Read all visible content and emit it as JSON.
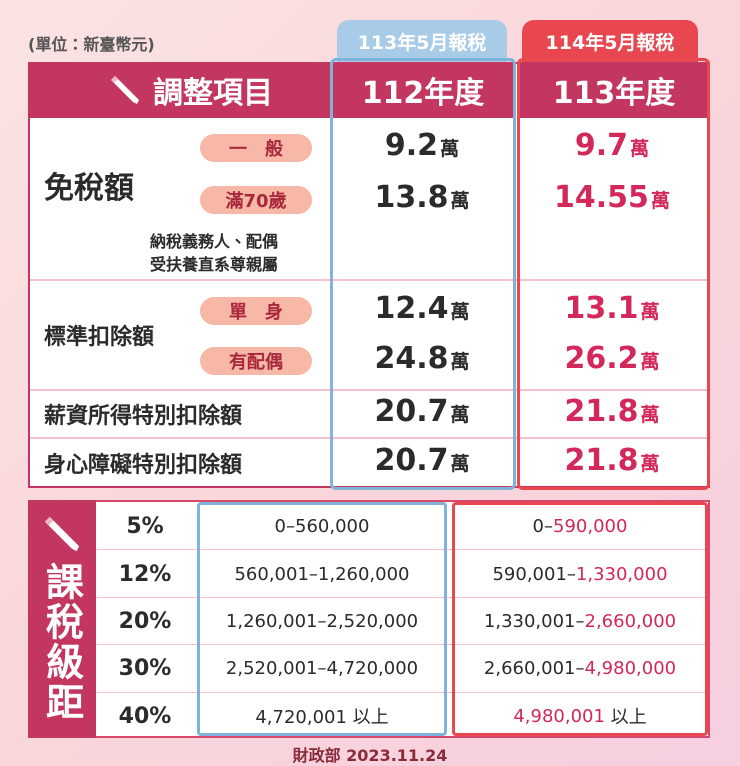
{
  "unit_note": "(單位：新臺幣元)",
  "header": {
    "item_title": "調整項目",
    "old_tag": "113年5月報稅",
    "new_tag": "114年5月報稅",
    "old_year": "112年度",
    "new_year": "113年度"
  },
  "deductions": [
    {
      "label": "免稅額",
      "items": [
        {
          "label": "一　般",
          "old": {
            "amount": "9.2",
            "unit": "萬"
          },
          "new": {
            "amount": "9.7",
            "unit": "萬"
          }
        },
        {
          "label": "滿70歲",
          "old": {
            "amount": "13.8",
            "unit": "萬"
          },
          "new": {
            "amount": "14.55",
            "unit": "萬"
          }
        }
      ],
      "note": [
        "納稅義務人、配偶",
        "受扶養直系尊親屬"
      ]
    },
    {
      "label": "標準扣除額",
      "items": [
        {
          "label": "單　身",
          "old": {
            "amount": "12.4",
            "unit": "萬"
          },
          "new": {
            "amount": "13.1",
            "unit": "萬"
          }
        },
        {
          "label": "有配偶",
          "old": {
            "amount": "24.8",
            "unit": "萬"
          },
          "new": {
            "amount": "26.2",
            "unit": "萬"
          }
        }
      ]
    },
    {
      "label": "薪資所得特別扣除額",
      "old": {
        "amount": "20.7",
        "unit": "萬"
      },
      "new": {
        "amount": "21.8",
        "unit": "萬"
      }
    },
    {
      "label": "身心障礙特別扣除額",
      "old": {
        "amount": "20.7",
        "unit": "萬"
      },
      "new": {
        "amount": "21.8",
        "unit": "萬"
      }
    }
  ],
  "brackets": {
    "title": "課稅級距",
    "rows": [
      {
        "rate": "5%",
        "old": "0–560,000",
        "new": [
          {
            "text": "0–"
          },
          {
            "text": "590,000",
            "emphasis": true
          }
        ]
      },
      {
        "rate": "12%",
        "old": "560,001–1,260,000",
        "new": [
          {
            "text": "590,001–"
          },
          {
            "text": "1,330,000",
            "emphasis": true
          }
        ]
      },
      {
        "rate": "20%",
        "old": "1,260,001–2,520,000",
        "new": [
          {
            "text": "1,330,001–"
          },
          {
            "text": "2,660,000",
            "emphasis": true
          }
        ]
      },
      {
        "rate": "30%",
        "old": "2,520,001–4,720,000",
        "new": [
          {
            "text": "2,660,001–"
          },
          {
            "text": "4,980,000",
            "emphasis": true
          }
        ]
      },
      {
        "rate": "40%",
        "old": "4,720,001 以上",
        "new": [
          {
            "text": "4,980,001",
            "emphasis": true
          },
          {
            "text": " 以上"
          }
        ]
      }
    ]
  },
  "footer": "財政部 2023.11.24"
}
